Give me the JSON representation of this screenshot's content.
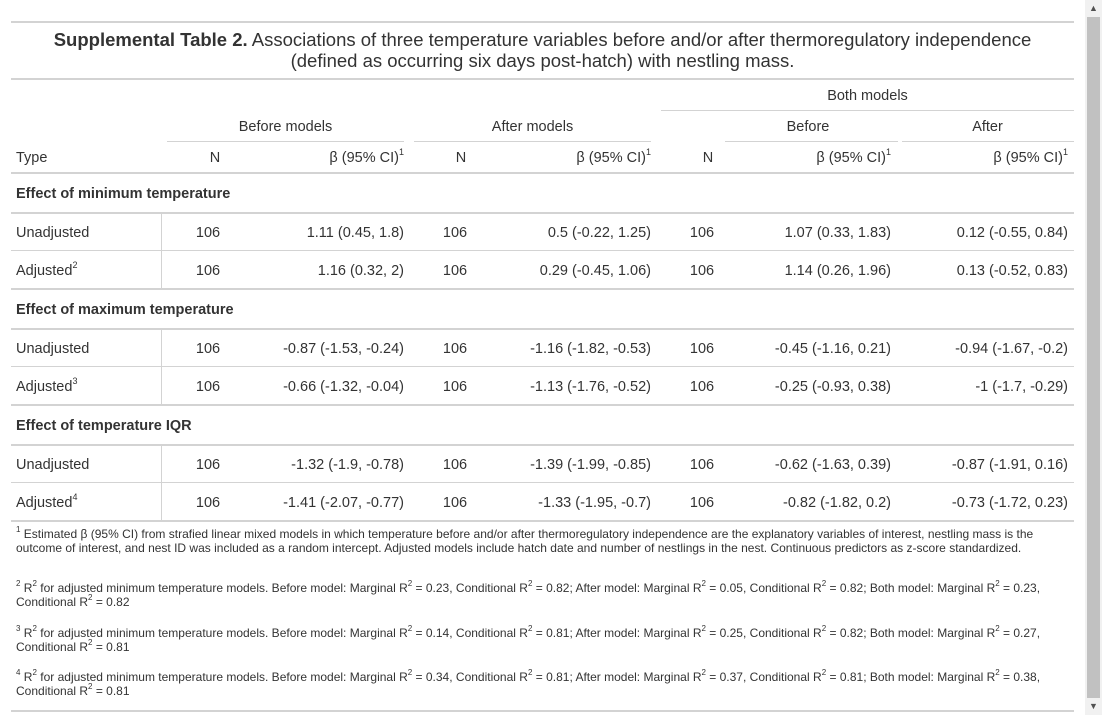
{
  "caption": {
    "bold": "Supplemental Table 2.",
    "line1": " Associations of three temperature variables before and/or after thermoregulatory independence",
    "line2": "(defined as occurring six days post-hatch) with nestling mass."
  },
  "header": {
    "spanners": {
      "both": "Both models",
      "before_models": "Before models",
      "after_models": "After models",
      "both_before": "Before",
      "both_after": "After"
    },
    "columns": {
      "type": "Type",
      "n": "N",
      "beta": "β (95% CI)",
      "beta_sup": "1"
    }
  },
  "groups": [
    {
      "title": "Effect of minimum temperature",
      "rows": [
        {
          "type": "Unadjusted",
          "sup": "",
          "n1": "106",
          "b1": "1.11 (0.45, 1.8)",
          "n2": "106",
          "b2": "0.5 (-0.22, 1.25)",
          "n3": "106",
          "b3": "1.07 (0.33, 1.83)",
          "b4": "0.12 (-0.55, 0.84)"
        },
        {
          "type": "Adjusted",
          "sup": "2",
          "n1": "106",
          "b1": "1.16 (0.32, 2)",
          "n2": "106",
          "b2": "0.29 (-0.45, 1.06)",
          "n3": "106",
          "b3": "1.14 (0.26, 1.96)",
          "b4": "0.13 (-0.52, 0.83)"
        }
      ]
    },
    {
      "title": "Effect of maximum temperature",
      "rows": [
        {
          "type": "Unadjusted",
          "sup": "",
          "n1": "106",
          "b1": "-0.87 (-1.53, -0.24)",
          "n2": "106",
          "b2": "-1.16 (-1.82, -0.53)",
          "n3": "106",
          "b3": "-0.45 (-1.16, 0.21)",
          "b4": "-0.94 (-1.67, -0.2)"
        },
        {
          "type": "Adjusted",
          "sup": "3",
          "n1": "106",
          "b1": "-0.66 (-1.32, -0.04)",
          "n2": "106",
          "b2": "-1.13 (-1.76, -0.52)",
          "n3": "106",
          "b3": "-0.25 (-0.93, 0.38)",
          "b4": "-1 (-1.7, -0.29)"
        }
      ]
    },
    {
      "title": "Effect of temperature IQR",
      "rows": [
        {
          "type": "Unadjusted",
          "sup": "",
          "n1": "106",
          "b1": "-1.32 (-1.9, -0.78)",
          "n2": "106",
          "b2": "-1.39 (-1.99, -0.85)",
          "n3": "106",
          "b3": "-0.62 (-1.63, 0.39)",
          "b4": "-0.87 (-1.91, 0.16)"
        },
        {
          "type": "Adjusted",
          "sup": "4",
          "n1": "106",
          "b1": "-1.41 (-2.07, -0.77)",
          "n2": "106",
          "b2": "-1.33 (-1.95, -0.7)",
          "n3": "106",
          "b3": "-0.82 (-1.82, 0.2)",
          "b4": "-0.73 (-1.72, 0.23)"
        }
      ]
    }
  ],
  "footnotes": [
    {
      "mark": "1",
      "text": "Estimated β (95% CI) from strafied linear mixed models in which temperature before and/or after thermoregulatory independence are the explanatory variables of interest, nestling mass is the outcome of interest, and nest ID was included as a random intercept. Adjusted models include hatch date and number of nestlings in the nest. Continuous predictors as z-score standardized."
    },
    {
      "mark": "2",
      "parts": [
        "R",
        "2",
        " for adjusted minimum temperature models. Before model: Marginal R",
        "2",
        " = 0.23, Conditional R",
        "2",
        " = 0.82; After model: Marginal R",
        "2",
        " = 0.05, Conditional R",
        "2",
        " = 0.82; Both model: Marginal R",
        "2",
        " = 0.23, Conditional R",
        "2",
        " = 0.82"
      ]
    },
    {
      "mark": "3",
      "parts": [
        "R",
        "2",
        " for adjusted minimum temperature models. Before model: Marginal R",
        "2",
        " = 0.14, Conditional R",
        "2",
        " = 0.81; After model: Marginal R",
        "2",
        " = 0.25, Conditional R",
        "2",
        " = 0.82; Both model: Marginal R",
        "2",
        " = 0.27, Conditional R",
        "2",
        " = 0.81"
      ]
    },
    {
      "mark": "4",
      "parts": [
        "R",
        "2",
        " for adjusted minimum temperature models. Before model: Marginal R",
        "2",
        " = 0.34, Conditional R",
        "2",
        " = 0.81; After model: Marginal R",
        "2",
        " = 0.37, Conditional R",
        "2",
        " = 0.81; Both model: Marginal R",
        "2",
        " = 0.38, Conditional R",
        "2",
        " = 0.81"
      ]
    }
  ],
  "scrollbar": {
    "up": "▲",
    "down": "▼"
  }
}
